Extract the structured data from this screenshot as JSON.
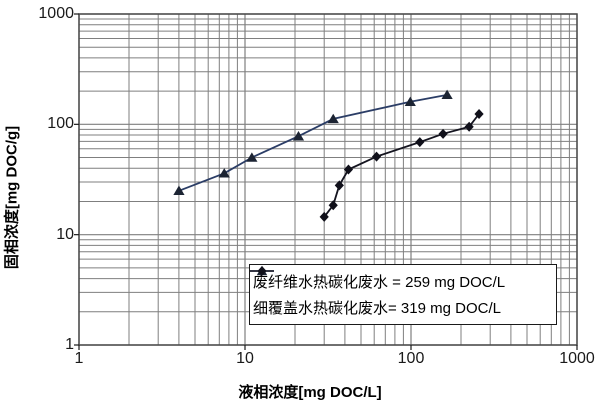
{
  "figure": {
    "background": "#ffffff",
    "grid_color": "#7f7f7f",
    "border_color": "#4a4a4a",
    "tick_color": "#1a1a1a"
  },
  "chart_data": {
    "type": "line",
    "subtype": "scatter-line adsorption isotherm, log-log axes",
    "title": "",
    "xlabel": "液相浓度[mg DOC/L]",
    "ylabel": "固相浓度[mg DOC/g]",
    "xscale": "log",
    "yscale": "log",
    "xlim": [
      1,
      1000
    ],
    "ylim": [
      1,
      1000
    ],
    "x_tick_labels": [
      "1",
      "10",
      "100",
      "1000"
    ],
    "y_tick_labels": [
      "1",
      "10",
      "100",
      "1000"
    ],
    "grid": "major and minor log gridlines on both axes",
    "legend_position": "inside-bottom-right",
    "series": [
      {
        "name": "废纤维水热碳化废水 = 259 mg DOC/L",
        "marker": "triangle",
        "line_color": "#2b3d66",
        "marker_color": "#1c2433",
        "points": [
          [
            4,
            25
          ],
          [
            7.5,
            36
          ],
          [
            11,
            50
          ],
          [
            21,
            78
          ],
          [
            34,
            112
          ],
          [
            99,
            160
          ],
          [
            165,
            185
          ]
        ]
      },
      {
        "name": "细覆盖水热碳化废水= 319 mg DOC/L",
        "marker": "diamond",
        "line_color": "#14141f",
        "marker_color": "#10101a",
        "points": [
          [
            30,
            14.5
          ],
          [
            34,
            18.5
          ],
          [
            37,
            28
          ],
          [
            42,
            39
          ],
          [
            62,
            51
          ],
          [
            113,
            69
          ],
          [
            156,
            82
          ],
          [
            224,
            95
          ],
          [
            257,
            124
          ]
        ]
      }
    ]
  }
}
